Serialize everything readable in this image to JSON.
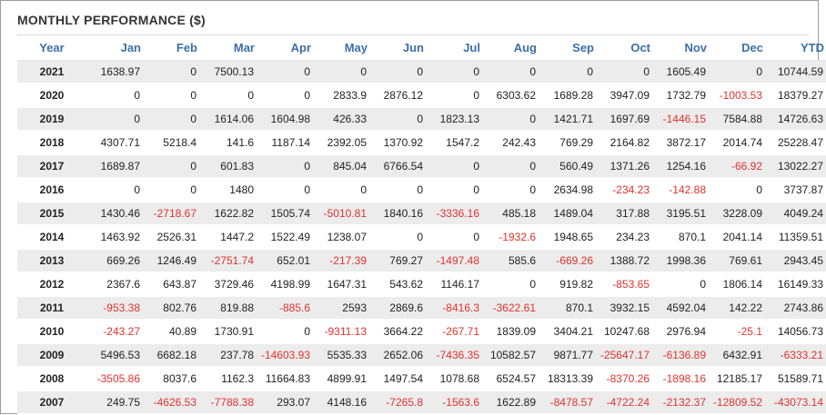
{
  "title": "MONTHLY PERFORMANCE ($)",
  "columns": [
    "Year",
    "Jan",
    "Feb",
    "Mar",
    "Apr",
    "May",
    "Jun",
    "Jul",
    "Aug",
    "Sep",
    "Oct",
    "Nov",
    "Dec",
    "YTD"
  ],
  "colors": {
    "header_text": "#3c6fa8",
    "negative": "#e0322e",
    "row_shade": "#ececec"
  },
  "rows": [
    [
      "2021",
      "1638.97",
      "0",
      "7500.13",
      "0",
      "0",
      "0",
      "0",
      "0",
      "0",
      "0",
      "1605.49",
      "0",
      "10744.59"
    ],
    [
      "2020",
      "0",
      "0",
      "0",
      "0",
      "2833.9",
      "2876.12",
      "0",
      "6303.62",
      "1689.28",
      "3947.09",
      "1732.79",
      "-1003.53",
      "18379.27"
    ],
    [
      "2019",
      "0",
      "0",
      "1614.06",
      "1604.98",
      "426.33",
      "0",
      "1823.13",
      "0",
      "1421.71",
      "1697.69",
      "-1446.15",
      "7584.88",
      "14726.63"
    ],
    [
      "2018",
      "4307.71",
      "5218.4",
      "141.6",
      "1187.14",
      "2392.05",
      "1370.92",
      "1547.2",
      "242.43",
      "769.29",
      "2164.82",
      "3872.17",
      "2014.74",
      "25228.47"
    ],
    [
      "2017",
      "1689.87",
      "0",
      "601.83",
      "0",
      "845.04",
      "6766.54",
      "0",
      "0",
      "560.49",
      "1371.26",
      "1254.16",
      "-66.92",
      "13022.27"
    ],
    [
      "2016",
      "0",
      "0",
      "1480",
      "0",
      "0",
      "0",
      "0",
      "0",
      "2634.98",
      "-234.23",
      "-142.88",
      "0",
      "3737.87"
    ],
    [
      "2015",
      "1430.46",
      "-2718.67",
      "1622.82",
      "1505.74",
      "-5010.81",
      "1840.16",
      "-3336.16",
      "485.18",
      "1489.04",
      "317.88",
      "3195.51",
      "3228.09",
      "4049.24"
    ],
    [
      "2014",
      "1463.92",
      "2526.31",
      "1447.2",
      "1522.49",
      "1238.07",
      "0",
      "0",
      "-1932.6",
      "1948.65",
      "234.23",
      "870.1",
      "2041.14",
      "11359.51"
    ],
    [
      "2013",
      "669.26",
      "1246.49",
      "-2751.74",
      "652.01",
      "-217.39",
      "769.27",
      "-1497.48",
      "585.6",
      "-669.26",
      "1388.72",
      "1998.36",
      "769.61",
      "2943.45"
    ],
    [
      "2012",
      "2367.6",
      "643.87",
      "3729.46",
      "4198.99",
      "1647.31",
      "543.62",
      "1146.17",
      "0",
      "919.82",
      "-853.65",
      "0",
      "1806.14",
      "16149.33"
    ],
    [
      "2011",
      "-953.38",
      "802.76",
      "819.88",
      "-885.6",
      "2593",
      "2869.6",
      "-8416.3",
      "-3622.61",
      "870.1",
      "3932.15",
      "4592.04",
      "142.22",
      "2743.86"
    ],
    [
      "2010",
      "-243.27",
      "40.89",
      "1730.91",
      "0",
      "-9311.13",
      "3664.22",
      "-267.71",
      "1839.09",
      "3404.21",
      "10247.68",
      "2976.94",
      "-25.1",
      "14056.73"
    ],
    [
      "2009",
      "5496.53",
      "6682.18",
      "237.78",
      "-14603.93",
      "5535.33",
      "2652.06",
      "-7436.35",
      "10582.57",
      "9871.77",
      "-25647.17",
      "-6136.89",
      "6432.91",
      "-6333.21"
    ],
    [
      "2008",
      "-3505.86",
      "8037.6",
      "1162.3",
      "11664.83",
      "4899.91",
      "1497.54",
      "1078.68",
      "6524.57",
      "18313.39",
      "-8370.26",
      "-1898.16",
      "12185.17",
      "51589.71"
    ],
    [
      "2007",
      "249.75",
      "-4626.53",
      "-7788.38",
      "293.07",
      "4148.16",
      "-7265.8",
      "-1563.6",
      "1622.89",
      "-8478.57",
      "-4722.24",
      "-2132.37",
      "-12809.52",
      "-43073.14"
    ]
  ]
}
